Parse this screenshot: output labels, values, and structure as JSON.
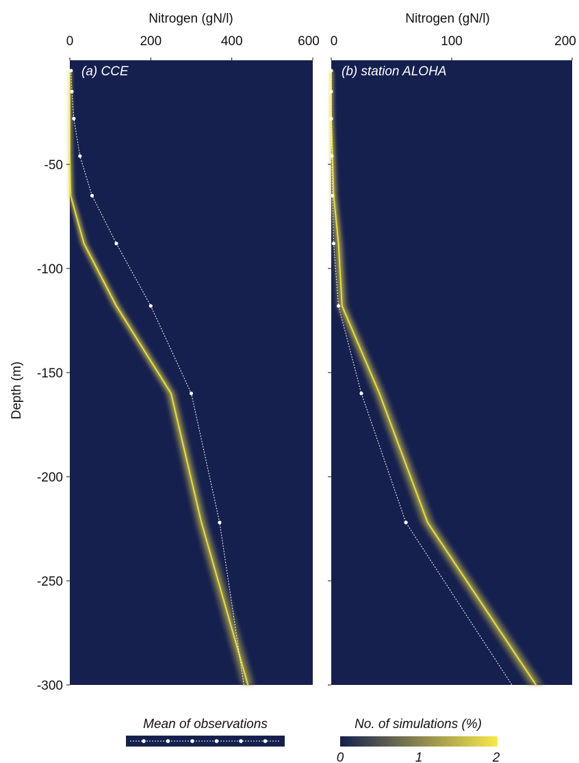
{
  "colors": {
    "background": "#16204f",
    "ensemble_high": "#f7e94a",
    "ensemble_mid": "#8a8550",
    "observation_line": "#ffffff"
  },
  "chart_data": [
    {
      "type": "line",
      "panel_label": "(a) CCE",
      "xlabel": "Nitrogen (gN/l)",
      "ylabel": "Depth (m)",
      "xlim": [
        0,
        600
      ],
      "ylim": [
        -300,
        0
      ],
      "xticks": [
        0,
        200,
        400,
        600
      ],
      "yticks": [
        -50,
        -100,
        -150,
        -200,
        -250,
        -300
      ],
      "series": [
        {
          "name": "Mean of observations",
          "x": [
            3,
            5,
            10,
            25,
            55,
            115,
            200,
            300,
            370,
            430
          ],
          "y": [
            -5,
            -15,
            -28,
            -46,
            -65,
            -88,
            -118,
            -160,
            -222,
            -300
          ]
        },
        {
          "name": "No. of simulations (%)",
          "x": [
            0,
            0,
            0,
            0,
            2,
            35,
            115,
            250,
            325,
            440
          ],
          "y": [
            -5,
            -15,
            -28,
            -46,
            -65,
            -88,
            -118,
            -160,
            -222,
            -300
          ]
        }
      ]
    },
    {
      "type": "line",
      "panel_label": "(b) station ALOHA",
      "xlabel": "Nitrogen (gN/l)",
      "xlim": [
        0,
        200
      ],
      "ylim": [
        -300,
        0
      ],
      "xticks": [
        0,
        100,
        200
      ],
      "series": [
        {
          "name": "Mean of observations",
          "x": [
            0,
            0,
            0,
            0.5,
            1,
            2,
            6,
            25,
            62,
            150
          ],
          "y": [
            -5,
            -15,
            -28,
            -46,
            -65,
            -88,
            -118,
            -160,
            -222,
            -300
          ]
        },
        {
          "name": "No. of simulations (%)",
          "x": [
            0,
            0,
            0,
            1,
            2,
            6,
            9,
            40,
            80,
            170
          ],
          "y": [
            -5,
            -15,
            -28,
            -46,
            -65,
            -88,
            -118,
            -160,
            -222,
            -300
          ]
        }
      ]
    }
  ],
  "legend": {
    "observations_label": "Mean of observations",
    "colorbar_label": "No. of simulations (%)",
    "colorbar_ticks": [
      "0",
      "1",
      "2"
    ],
    "colorbar_range": [
      0,
      2
    ]
  }
}
